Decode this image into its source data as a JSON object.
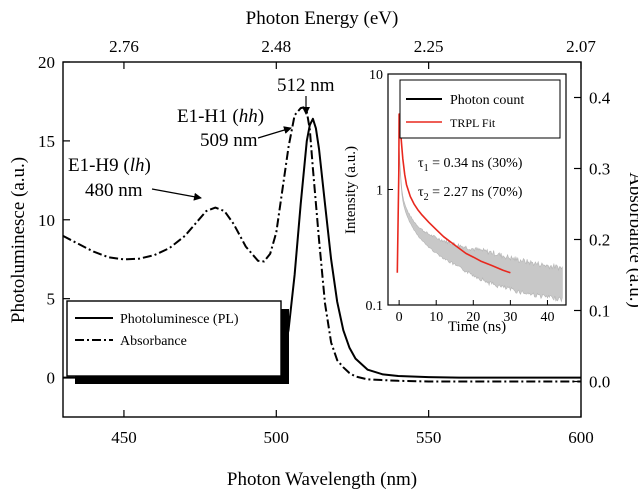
{
  "chart_data": [
    {
      "type": "line",
      "x_label": "Photon Wavelength (nm)",
      "x_range": [
        430,
        600
      ],
      "x_ticks": [
        450,
        500,
        550,
        600
      ],
      "y_left_label": "Photoluminesce (a.u.)",
      "y_left_range": [
        -2.5,
        20
      ],
      "y_left_ticks": [
        0,
        5,
        10,
        15,
        20
      ],
      "y_right_label": "Absorbance (a.u.)",
      "y_right_range": [
        -0.05,
        0.45
      ],
      "y_right_ticks": [
        "0.0",
        "0.1",
        "0.2",
        "0.3",
        "0.4"
      ],
      "y_right_tick_values": [
        0,
        0.1,
        0.2,
        0.3,
        0.4
      ],
      "top_axis_label": "Photon Energy (eV)",
      "top_axis_ticks": [
        "2.76",
        "2.48",
        "2.25",
        "2.07"
      ],
      "top_axis_tick_wavelengths": [
        450,
        500,
        550,
        600
      ],
      "legend_position": "bottom-left",
      "series": [
        {
          "name": "Photoluminesce (PL)",
          "axis": "left",
          "style": "solid",
          "x": [
            430,
            440,
            450,
            460,
            470,
            480,
            490,
            495,
            498,
            500,
            502,
            504,
            506,
            508,
            510,
            511,
            512,
            513,
            514,
            516,
            518,
            520,
            522,
            524,
            526,
            530,
            535,
            540,
            550,
            560,
            580,
            600
          ],
          "y": [
            0,
            0,
            0,
            0.05,
            0.05,
            0.1,
            0.1,
            0.15,
            0.3,
            0.5,
            1.2,
            3.0,
            6.5,
            11.0,
            15.0,
            16.0,
            16.4,
            15.8,
            14.5,
            11.0,
            7.5,
            4.8,
            3.0,
            1.9,
            1.2,
            0.5,
            0.2,
            0.1,
            0.03,
            0,
            0,
            0
          ]
        },
        {
          "name": "Absorbance",
          "axis": "right",
          "style": "dash-dot",
          "x": [
            430,
            435,
            440,
            445,
            450,
            455,
            460,
            465,
            470,
            474,
            477,
            480,
            483,
            486,
            490,
            494,
            496,
            498,
            500,
            502,
            504,
            506,
            508,
            509,
            510,
            511,
            512,
            514,
            516,
            518,
            520,
            522,
            524,
            526,
            530,
            540,
            550,
            560,
            580,
            600
          ],
          "y": [
            0.205,
            0.194,
            0.183,
            0.175,
            0.172,
            0.173,
            0.178,
            0.188,
            0.205,
            0.225,
            0.24,
            0.245,
            0.24,
            0.222,
            0.19,
            0.17,
            0.169,
            0.18,
            0.21,
            0.27,
            0.33,
            0.375,
            0.385,
            0.386,
            0.38,
            0.355,
            0.3,
            0.2,
            0.11,
            0.055,
            0.03,
            0.02,
            0.012,
            0.007,
            0.003,
            0.001,
            0,
            0,
            0,
            0
          ]
        }
      ],
      "annotations": [
        {
          "name": "E1-H9 (lh)",
          "text_main": "E1-H9 (",
          "text_italic": "lh",
          "text_tail": ")",
          "value_text": "480 nm",
          "x": 480
        },
        {
          "name": "E1-H1 (hh)",
          "text_main": "E1-H1 (",
          "text_italic": "hh",
          "text_tail": ")",
          "value_text": "509 nm",
          "x": 509
        },
        {
          "name": "PL peak",
          "value_text": "512 nm",
          "x": 512
        }
      ]
    },
    {
      "type": "line",
      "x_label": "Time (ns)",
      "x_range": [
        -3,
        45
      ],
      "x_ticks": [
        0,
        10,
        20,
        30,
        40
      ],
      "y_label": "Intensity (a.u.)",
      "y_scale": "log",
      "y_range": [
        0.1,
        10
      ],
      "y_ticks": [
        0.1,
        1,
        10
      ],
      "y_tick_labels": [
        "0.1",
        "1",
        "10"
      ],
      "legend_position": "top-right",
      "series": [
        {
          "name": "Photon count",
          "color": "#000000",
          "noise_band_color": "#c8c8c8"
        },
        {
          "name": "TRPL Fit",
          "color": "#e8281e",
          "x": [
            -0.5,
            -0.1,
            0,
            0.3,
            0.7,
            1,
            1.5,
            2,
            3,
            4,
            5,
            6,
            8,
            10,
            12,
            15,
            18,
            20,
            22,
            25,
            28,
            30
          ],
          "y": [
            0.19,
            1.4,
            4.5,
            3.5,
            2.4,
            1.85,
            1.35,
            1.1,
            0.87,
            0.75,
            0.67,
            0.61,
            0.52,
            0.45,
            0.39,
            0.33,
            0.28,
            0.26,
            0.24,
            0.22,
            0.2,
            0.19
          ]
        }
      ],
      "fit_parameters": {
        "tau1": {
          "symbol": "τ",
          "sub": "1",
          "text": " = 0.34 ns (30%)"
        },
        "tau2": {
          "symbol": "τ",
          "sub": "2",
          "text": " = 2.27 ns (70%)"
        }
      }
    }
  ]
}
